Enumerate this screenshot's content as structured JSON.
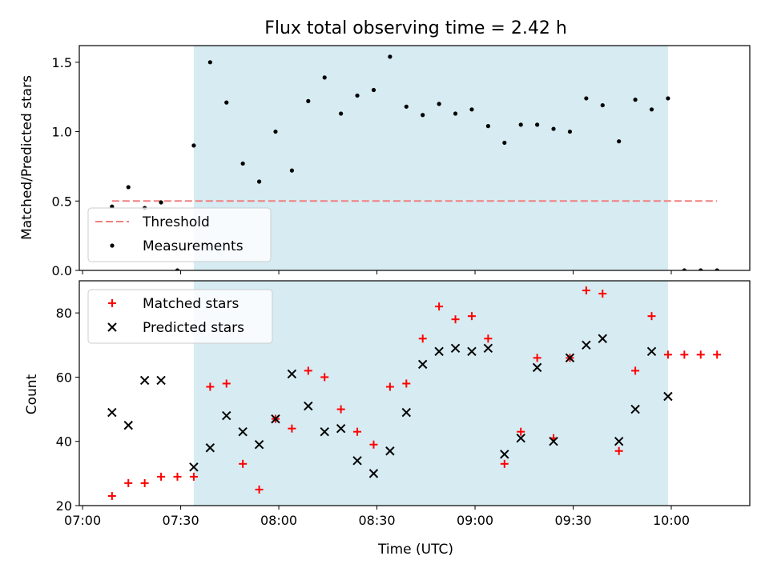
{
  "chart_data": [
    {
      "type": "scatter",
      "title": "Flux total observing time = 2.42 h",
      "ylabel": "Matched/Predicted stars",
      "xlim": [
        "06:59",
        "10:24"
      ],
      "ylim": [
        0,
        1.62
      ],
      "yticks": [
        "0.0",
        "0.5",
        "1.0",
        "1.5"
      ],
      "shaded_range": [
        "07:34",
        "09:59"
      ],
      "legend_position": "lower-left",
      "threshold": {
        "name": "Threshold",
        "y": 0.5,
        "x_range": [
          "07:09",
          "10:14"
        ],
        "color": "#f08080"
      },
      "series": [
        {
          "name": "Measurements",
          "color": "#000000",
          "x": [
            "07:09",
            "07:14",
            "07:19",
            "07:24",
            "07:29",
            "07:34",
            "07:39",
            "07:44",
            "07:49",
            "07:54",
            "07:59",
            "08:04",
            "08:09",
            "08:14",
            "08:19",
            "08:24",
            "08:29",
            "08:34",
            "08:39",
            "08:44",
            "08:49",
            "08:54",
            "08:59",
            "09:04",
            "09:09",
            "09:14",
            "09:19",
            "09:24",
            "09:29",
            "09:34",
            "09:39",
            "09:44",
            "09:49",
            "09:54",
            "09:59",
            "10:04",
            "10:09",
            "10:14"
          ],
          "y": [
            0.46,
            0.6,
            0.45,
            0.49,
            0.0,
            0.9,
            1.5,
            1.21,
            0.77,
            0.64,
            1.0,
            0.72,
            1.22,
            1.39,
            1.13,
            1.26,
            1.3,
            1.54,
            1.18,
            1.12,
            1.2,
            1.13,
            1.16,
            1.04,
            0.92,
            1.05,
            1.05,
            1.02,
            1.0,
            1.24,
            1.19,
            0.93,
            1.23,
            1.16,
            1.24,
            0.0,
            0.0,
            0.0
          ]
        }
      ]
    },
    {
      "type": "scatter",
      "xlabel": "Time (UTC)",
      "ylabel": "Count",
      "xlim": [
        "06:59",
        "10:24"
      ],
      "ylim": [
        20,
        90
      ],
      "xticks": [
        "07:00",
        "07:30",
        "08:00",
        "08:30",
        "09:00",
        "09:30",
        "10:00"
      ],
      "yticks": [
        "20",
        "40",
        "60",
        "80"
      ],
      "shaded_range": [
        "07:34",
        "09:59"
      ],
      "legend_position": "upper-left",
      "series": [
        {
          "name": "Matched stars",
          "marker": "plus",
          "color": "#ff0000",
          "x": [
            "07:09",
            "07:14",
            "07:19",
            "07:24",
            "07:29",
            "07:34",
            "07:39",
            "07:44",
            "07:49",
            "07:54",
            "07:59",
            "08:04",
            "08:09",
            "08:14",
            "08:19",
            "08:24",
            "08:29",
            "08:34",
            "08:39",
            "08:44",
            "08:49",
            "08:54",
            "08:59",
            "09:04",
            "09:09",
            "09:14",
            "09:19",
            "09:24",
            "09:29",
            "09:34",
            "09:39",
            "09:44",
            "09:49",
            "09:54",
            "09:59",
            "10:04",
            "10:09",
            "10:14"
          ],
          "y": [
            23,
            27,
            27,
            29,
            29,
            29,
            57,
            58,
            33,
            25,
            47,
            44,
            62,
            60,
            50,
            43,
            39,
            57,
            58,
            72,
            82,
            78,
            79,
            72,
            33,
            43,
            66,
            41,
            66,
            87,
            86,
            37,
            62,
            79,
            67,
            67,
            67,
            67
          ]
        },
        {
          "name": "Predicted stars",
          "marker": "x",
          "color": "#000000",
          "x": [
            "07:09",
            "07:14",
            "07:19",
            "07:24",
            "07:34",
            "07:39",
            "07:44",
            "07:49",
            "07:54",
            "07:59",
            "08:04",
            "08:09",
            "08:14",
            "08:19",
            "08:24",
            "08:29",
            "08:34",
            "08:39",
            "08:44",
            "08:49",
            "08:54",
            "08:59",
            "09:04",
            "09:09",
            "09:14",
            "09:19",
            "09:24",
            "09:29",
            "09:34",
            "09:39",
            "09:44",
            "09:49",
            "09:54",
            "09:59"
          ],
          "y": [
            49,
            45,
            59,
            59,
            32,
            38,
            48,
            43,
            39,
            47,
            61,
            51,
            43,
            44,
            34,
            30,
            37,
            49,
            64,
            68,
            69,
            68,
            69,
            36,
            41,
            63,
            40,
            66,
            70,
            72,
            40,
            50,
            68,
            54
          ]
        }
      ]
    }
  ]
}
